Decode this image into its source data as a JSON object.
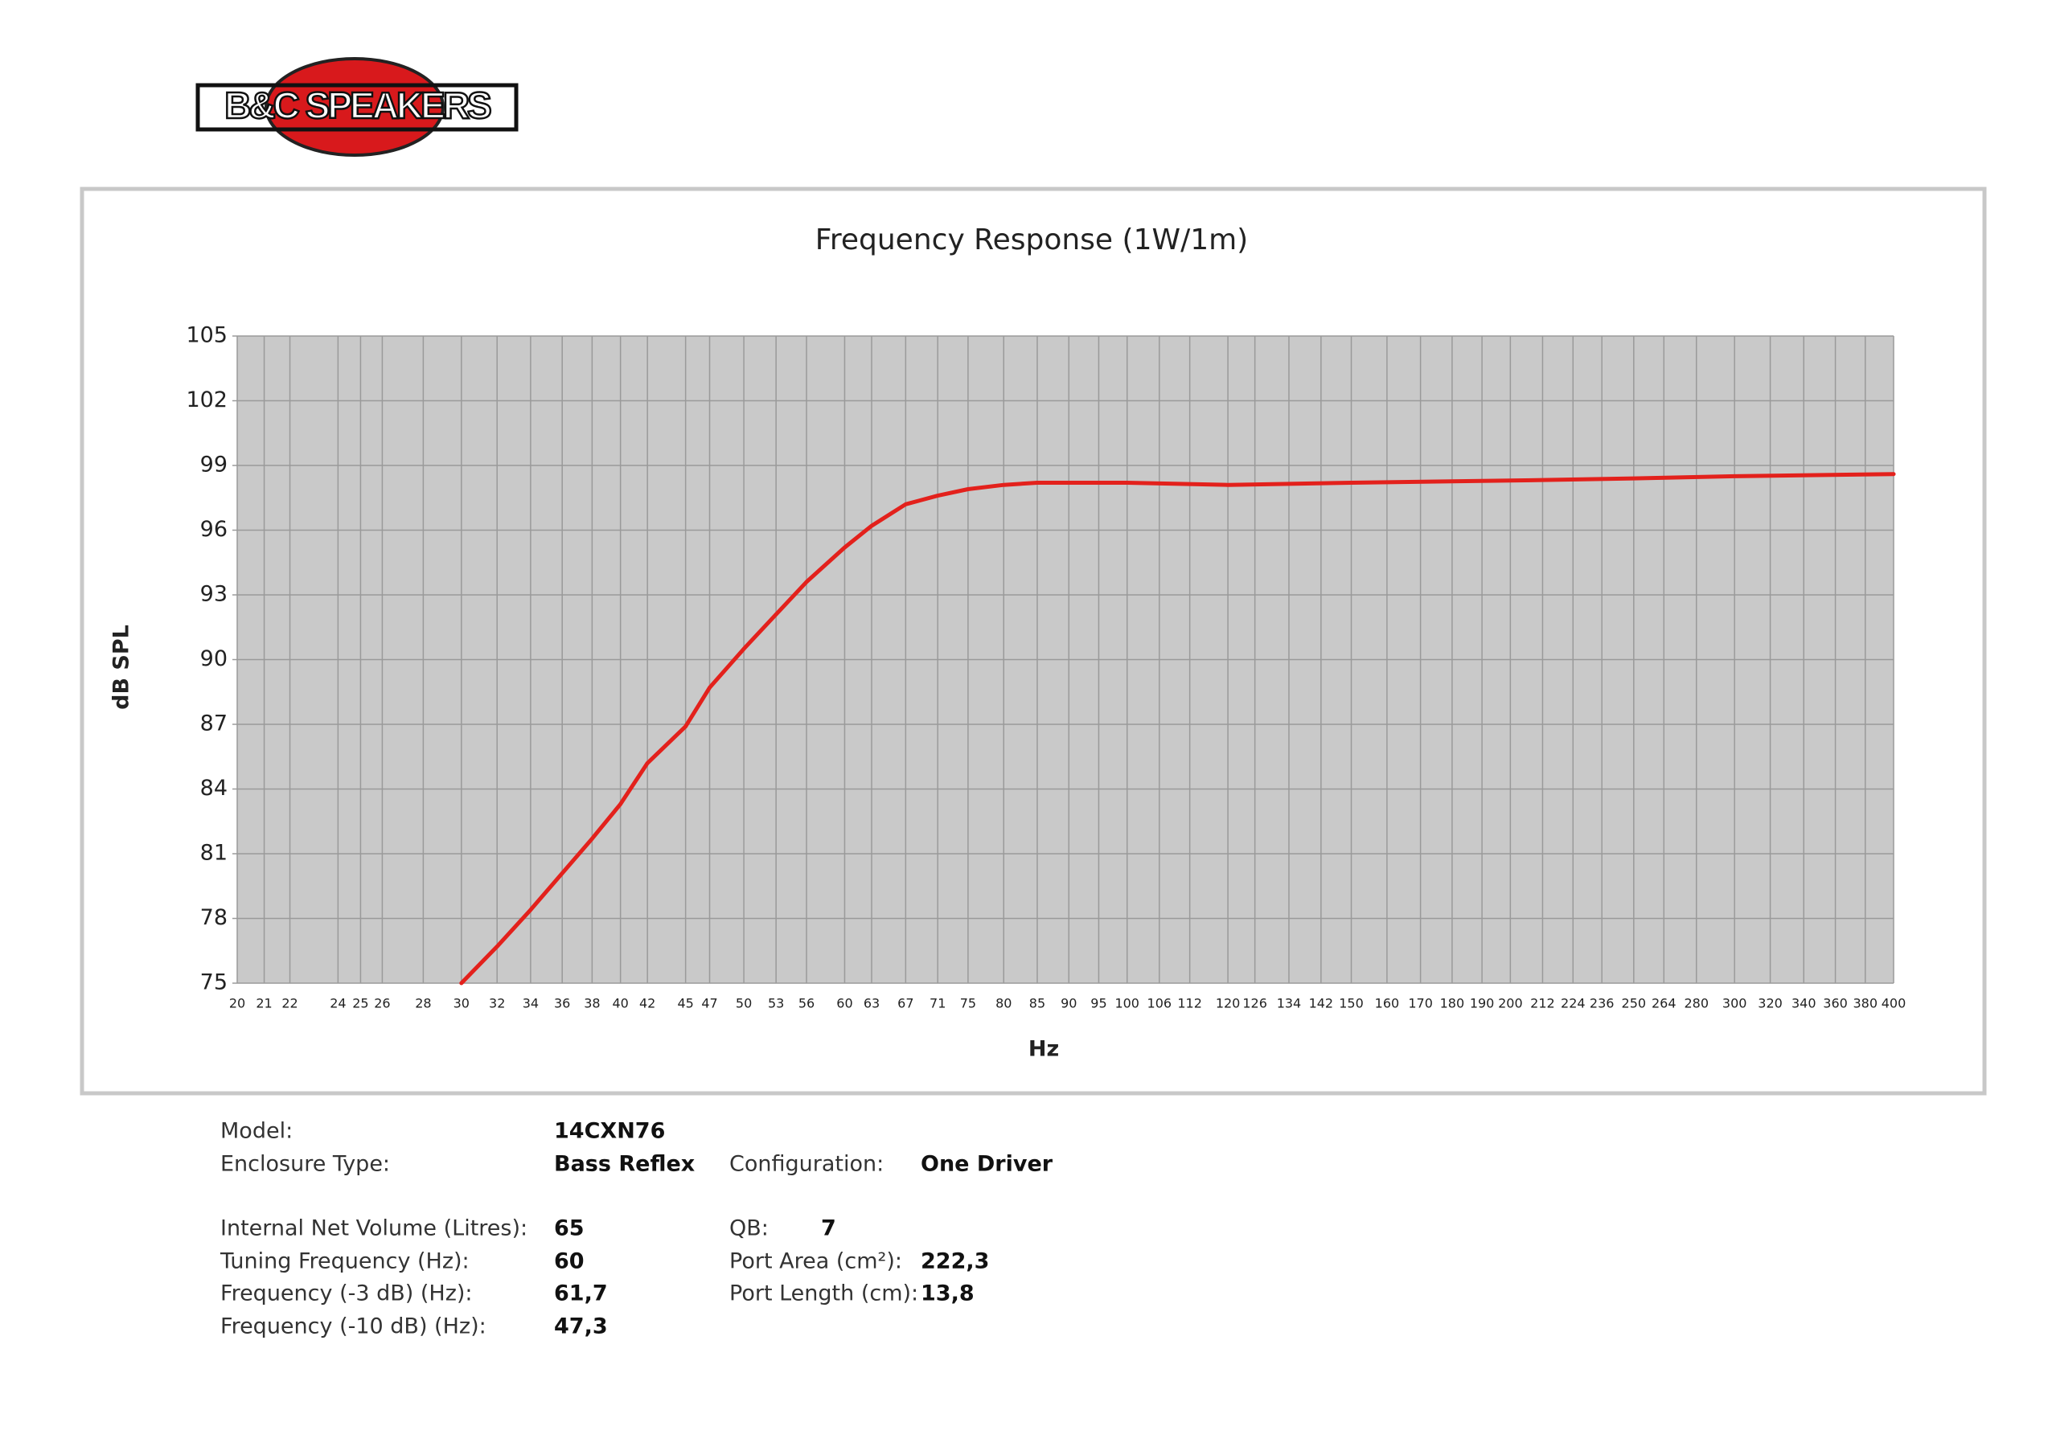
{
  "logo": "B&C SPEAKERS",
  "chart_data": {
    "type": "line",
    "title": "Frequency Response (1W/1m)",
    "x_label": "Hz",
    "y_label": "dB SPL",
    "x": [
      30,
      32,
      34,
      36,
      38,
      40,
      42,
      45,
      47,
      50,
      53,
      56,
      60,
      63,
      67,
      71,
      75,
      80,
      85,
      90,
      100,
      120,
      150,
      200,
      250,
      300,
      400
    ],
    "values": [
      75.0,
      76.7,
      78.4,
      80.1,
      81.7,
      83.3,
      85.2,
      86.9,
      88.7,
      90.5,
      92.1,
      93.6,
      95.2,
      96.2,
      97.2,
      97.6,
      97.9,
      98.1,
      98.2,
      98.2,
      98.2,
      98.1,
      98.2,
      98.3,
      98.4,
      98.5,
      98.6
    ],
    "color": "#e3211c",
    "x_log": true,
    "grid": true,
    "xlim": [
      20,
      400
    ],
    "xticks": [
      20,
      21,
      22,
      24,
      25,
      26,
      28,
      30,
      32,
      34,
      36,
      38,
      40,
      42,
      45,
      47,
      50,
      53,
      56,
      60,
      63,
      67,
      71,
      75,
      80,
      85,
      90,
      95,
      100,
      106,
      112,
      120,
      126,
      134,
      142,
      150,
      160,
      170,
      180,
      190,
      200,
      212,
      224,
      236,
      250,
      264,
      280,
      300,
      320,
      340,
      360,
      380,
      400
    ],
    "ylim": [
      75,
      105
    ],
    "yticks": [
      75,
      78,
      81,
      84,
      87,
      90,
      93,
      96,
      99,
      102,
      105
    ]
  },
  "specs": {
    "model": {
      "label": "Model:",
      "value": "14CXN76"
    },
    "enclosure": {
      "label": "Enclosure Type:",
      "value": "Bass Reflex"
    },
    "configuration": {
      "label": "Configuration:",
      "value": "One Driver"
    },
    "volume": {
      "label": "Internal Net Volume (Litres):",
      "value": "65"
    },
    "qb": {
      "label": "QB:",
      "value": "7"
    },
    "tuning": {
      "label": "Tuning Frequency (Hz):",
      "value": "60"
    },
    "port_area": {
      "label": "Port Area (cm²):",
      "value": "222,3"
    },
    "f3": {
      "label": "Frequency (-3 dB) (Hz):",
      "value": "61,7"
    },
    "port_length": {
      "label": "Port Length (cm):",
      "value": "13,8"
    },
    "f10": {
      "label": "Frequency (-10 dB) (Hz):",
      "value": "47,3"
    }
  }
}
